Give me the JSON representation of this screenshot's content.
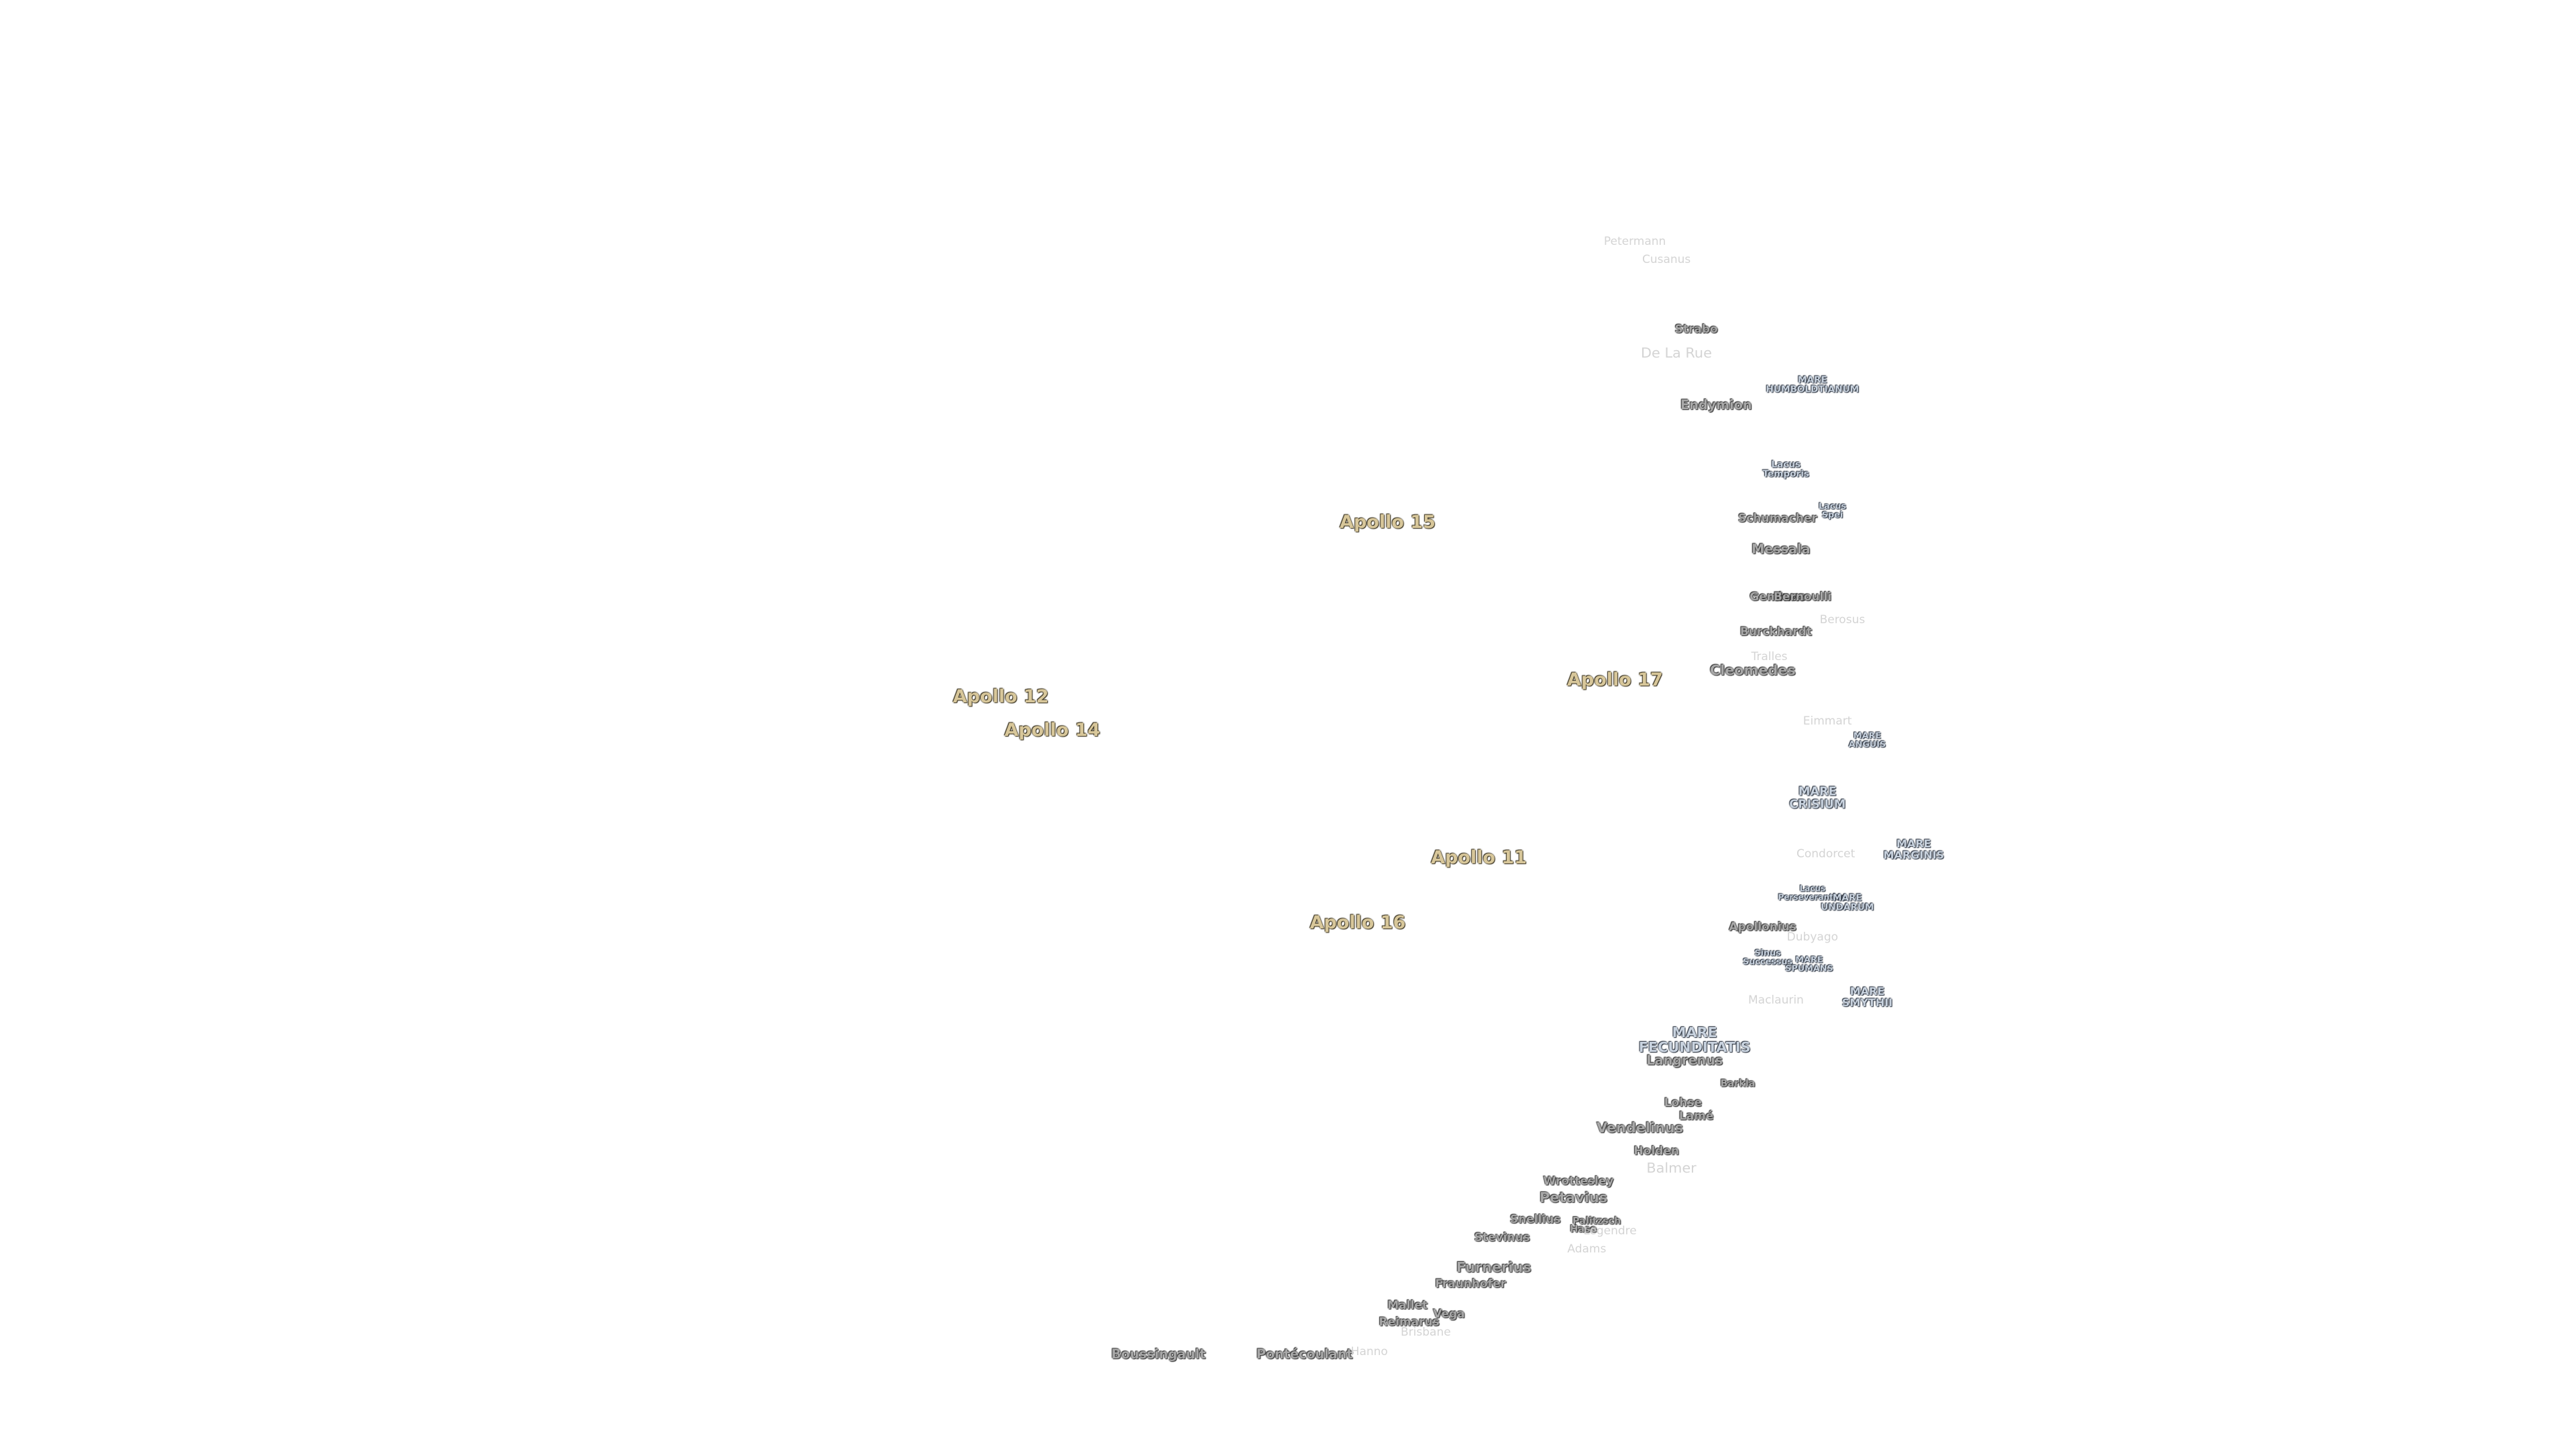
{
  "apollo_sites": [
    "Apollo 15",
    "Apollo 17",
    "Apollo 12",
    "Apollo 14",
    "Apollo 11",
    "Apollo 16"
  ],
  "maria": [
    "MARE HUMBOLDTIANUM",
    "Lacus Temporis",
    "Lacus Spei",
    "MARE ANGUIS",
    "MARE CRISIUM",
    "MARE MARGINIS",
    "Lacus Perseverantiae",
    "MARE UNDARUM",
    "Sinus Successus",
    "MARE SPUMANS",
    "MARE SMYTHII",
    "MARE FECUNDITATIS"
  ],
  "craters": [
    "Strabo",
    "Endymion",
    "Schumacher",
    "Messala",
    "Geminus",
    "Bernoulli",
    "Burckhardt",
    "Cleomedes",
    "Apollonius",
    "Langrenus",
    "Barkla",
    "Lohse",
    "Lamé",
    "Vendelinus",
    "Holden",
    "Wrottesley",
    "Petavius",
    "Snellius",
    "Palitzsch",
    "Hase",
    "Stevinus",
    "Furnerius",
    "Fraunhofer",
    "Mallet",
    "Vega",
    "Reimarus",
    "Boussingault",
    "Pontécoulant"
  ],
  "faint_craters": [
    "Petermann",
    "Cusanus",
    "De La Rue",
    "Berosus",
    "Tralles",
    "Eimmart",
    "Condorcet",
    "Dubyago",
    "Maclaurin",
    "Balmer",
    "Legendre",
    "Adams",
    "Brisbane",
    "Hanno"
  ]
}
